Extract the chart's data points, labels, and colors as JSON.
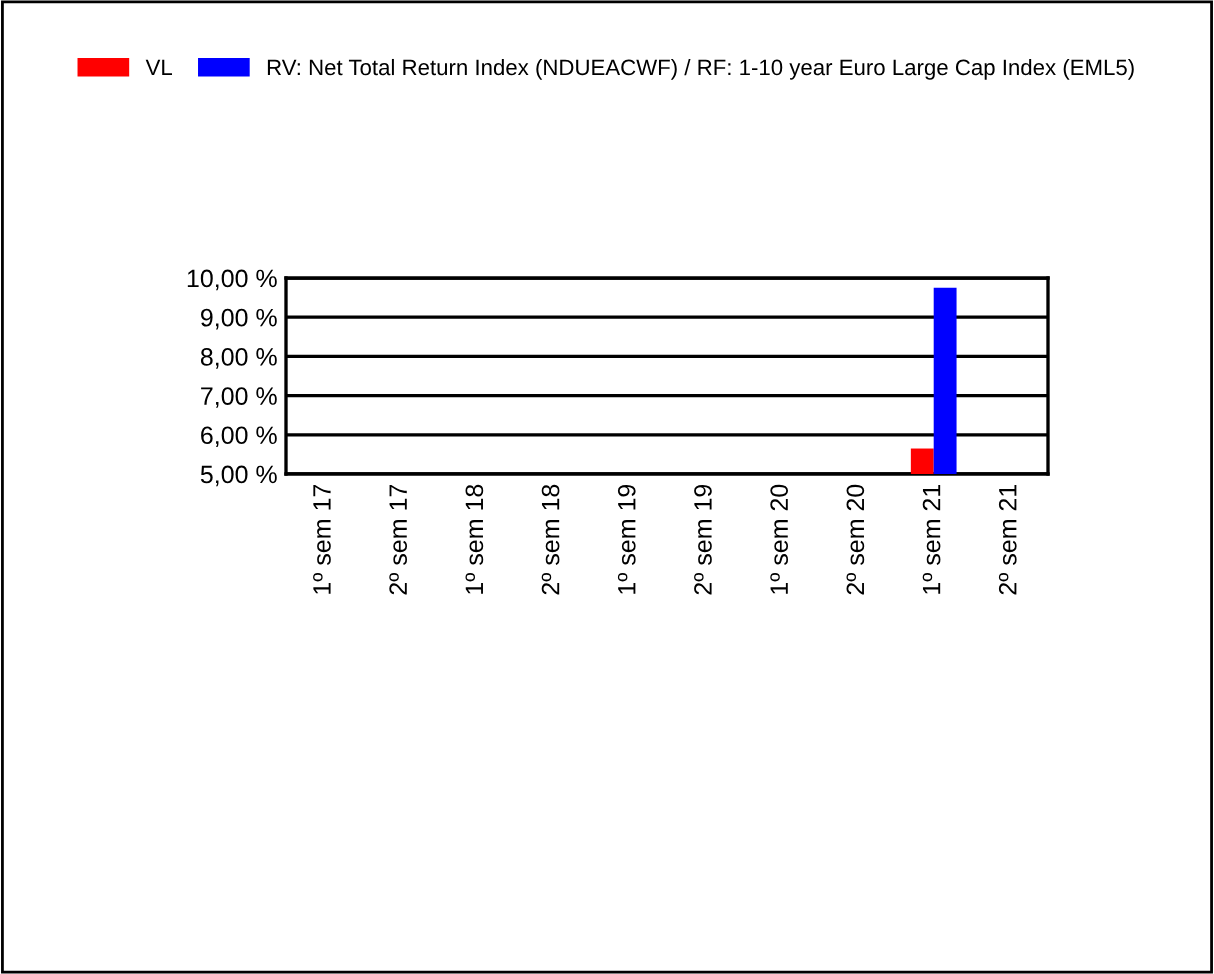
{
  "chart_data": {
    "type": "bar",
    "categories": [
      "1º sem 17",
      "2º sem 17",
      "1º sem 18",
      "2º sem 18",
      "1º sem 19",
      "2º sem 19",
      "1º sem 20",
      "2º sem 20",
      "1º sem 21",
      "2º sem 21"
    ],
    "series": [
      {
        "name": "VL",
        "color": "#ff0000",
        "values": [
          null,
          null,
          null,
          null,
          null,
          null,
          null,
          null,
          5.65,
          null
        ]
      },
      {
        "name": "RV: Net Total Return Index (NDUEACWF) / RF: 1-10 year Euro Large Cap Index (EML5)",
        "color": "#0000ff",
        "values": [
          null,
          null,
          null,
          null,
          null,
          null,
          null,
          null,
          9.75,
          null
        ]
      }
    ],
    "ylim": [
      5,
      10
    ],
    "yticks": [
      {
        "value": 5,
        "label": "5,00 %"
      },
      {
        "value": 6,
        "label": "6,00 %"
      },
      {
        "value": 7,
        "label": "7,00 %"
      },
      {
        "value": 8,
        "label": "8,00 %"
      },
      {
        "value": 9,
        "label": "9,00 %"
      },
      {
        "value": 10,
        "label": "10,00 %"
      }
    ],
    "grid": "y",
    "legend": "top"
  }
}
